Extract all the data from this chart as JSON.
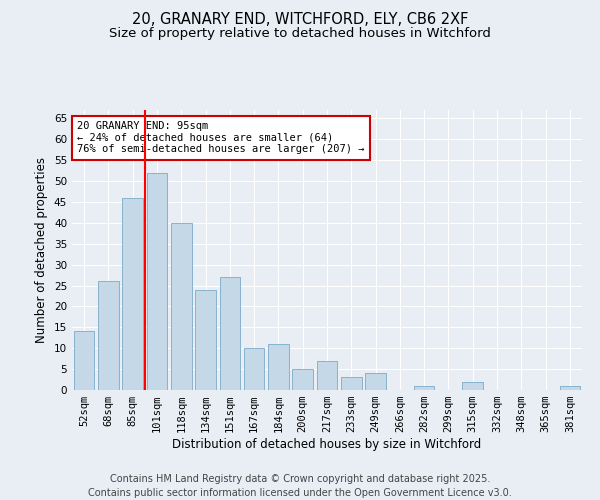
{
  "title_line1": "20, GRANARY END, WITCHFORD, ELY, CB6 2XF",
  "title_line2": "Size of property relative to detached houses in Witchford",
  "xlabel": "Distribution of detached houses by size in Witchford",
  "ylabel": "Number of detached properties",
  "categories": [
    "52sqm",
    "68sqm",
    "85sqm",
    "101sqm",
    "118sqm",
    "134sqm",
    "151sqm",
    "167sqm",
    "184sqm",
    "200sqm",
    "217sqm",
    "233sqm",
    "249sqm",
    "266sqm",
    "282sqm",
    "299sqm",
    "315sqm",
    "332sqm",
    "348sqm",
    "365sqm",
    "381sqm"
  ],
  "values": [
    14,
    26,
    46,
    52,
    40,
    24,
    27,
    10,
    11,
    5,
    7,
    3,
    4,
    0,
    1,
    0,
    2,
    0,
    0,
    0,
    1
  ],
  "bar_color": "#c5d8e8",
  "bar_edge_color": "#7aaac8",
  "red_line_index": 2.5,
  "annotation_text": "20 GRANARY END: 95sqm\n← 24% of detached houses are smaller (64)\n76% of semi-detached houses are larger (207) →",
  "annotation_box_color": "#ffffff",
  "annotation_box_edge_color": "#cc0000",
  "ylim": [
    0,
    67
  ],
  "yticks": [
    0,
    5,
    10,
    15,
    20,
    25,
    30,
    35,
    40,
    45,
    50,
    55,
    60,
    65
  ],
  "footer_line1": "Contains HM Land Registry data © Crown copyright and database right 2025.",
  "footer_line2": "Contains public sector information licensed under the Open Government Licence v3.0.",
  "background_color": "#e8eef4",
  "plot_bg_color": "#e8eef4",
  "grid_color": "#ffffff",
  "title_fontsize": 10.5,
  "subtitle_fontsize": 9.5,
  "axis_label_fontsize": 8.5,
  "tick_fontsize": 7.5,
  "annotation_fontsize": 7.5,
  "footer_fontsize": 7
}
